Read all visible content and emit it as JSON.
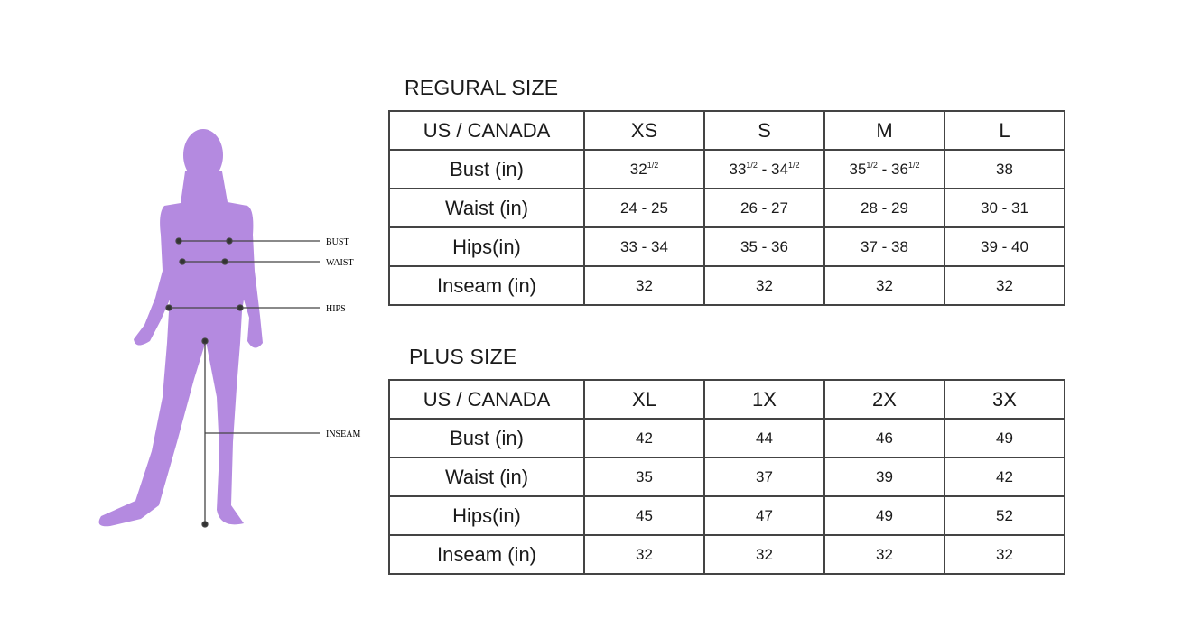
{
  "colors": {
    "silhouette": "#b48ae0",
    "lines": "#444444"
  },
  "figure": {
    "labels": {
      "bust": "BUST",
      "waist": "WAIST",
      "hips": "HIPS",
      "inseam": "INSEAM"
    }
  },
  "regular": {
    "title": "REGURAL SIZE",
    "header": [
      "US / CANADA",
      "XS",
      "S",
      "M",
      "L"
    ],
    "rows": [
      {
        "label": "Bust (in)",
        "values": [
          [
            {
              "t": "32",
              "s": "1/2"
            }
          ],
          [
            {
              "t": "33",
              "s": "1/2"
            },
            {
              "t": " - 34",
              "s": "1/2"
            }
          ],
          [
            {
              "t": "35",
              "s": "1/2"
            },
            {
              "t": " - 36",
              "s": "1/2"
            }
          ],
          [
            {
              "t": "38"
            }
          ]
        ]
      },
      {
        "label": "Waist (in)",
        "values": [
          [
            {
              "t": "24 - 25"
            }
          ],
          [
            {
              "t": "26 - 27"
            }
          ],
          [
            {
              "t": "28 - 29"
            }
          ],
          [
            {
              "t": "30 - 31"
            }
          ]
        ]
      },
      {
        "label": "Hips(in)",
        "values": [
          [
            {
              "t": "33 - 34"
            }
          ],
          [
            {
              "t": "35 - 36"
            }
          ],
          [
            {
              "t": "37 - 38"
            }
          ],
          [
            {
              "t": "39 - 40"
            }
          ]
        ]
      },
      {
        "label": "Inseam (in)",
        "values": [
          [
            {
              "t": "32"
            }
          ],
          [
            {
              "t": "32"
            }
          ],
          [
            {
              "t": "32"
            }
          ],
          [
            {
              "t": "32"
            }
          ]
        ]
      }
    ]
  },
  "plus": {
    "title": "PLUS SIZE",
    "header": [
      "US / CANADA",
      "XL",
      "1X",
      "2X",
      "3X"
    ],
    "rows": [
      {
        "label": "Bust (in)",
        "values": [
          [
            {
              "t": "42"
            }
          ],
          [
            {
              "t": "44"
            }
          ],
          [
            {
              "t": "46"
            }
          ],
          [
            {
              "t": "49"
            }
          ]
        ]
      },
      {
        "label": "Waist (in)",
        "values": [
          [
            {
              "t": "35"
            }
          ],
          [
            {
              "t": "37"
            }
          ],
          [
            {
              "t": "39"
            }
          ],
          [
            {
              "t": "42"
            }
          ]
        ]
      },
      {
        "label": "Hips(in)",
        "values": [
          [
            {
              "t": "45"
            }
          ],
          [
            {
              "t": "47"
            }
          ],
          [
            {
              "t": "49"
            }
          ],
          [
            {
              "t": "52"
            }
          ]
        ]
      },
      {
        "label": "Inseam (in)",
        "values": [
          [
            {
              "t": "32"
            }
          ],
          [
            {
              "t": "32"
            }
          ],
          [
            {
              "t": "32"
            }
          ],
          [
            {
              "t": "32"
            }
          ]
        ]
      }
    ]
  }
}
